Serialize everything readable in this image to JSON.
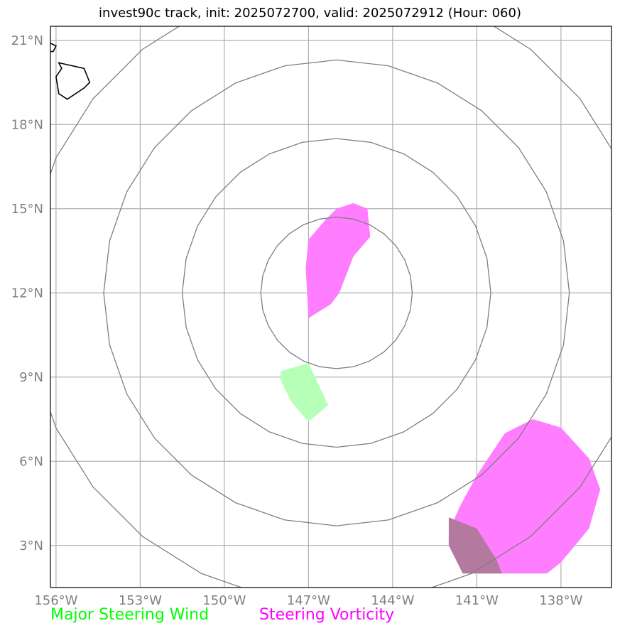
{
  "title": "invest90c track, init: 2025072700, valid: 2025072912 (Hour: 060)",
  "map": {
    "lon_range": [
      -156.2,
      -136.2
    ],
    "lat_range": [
      1.5,
      21.5
    ],
    "lon_ticks": [
      -156,
      -153,
      -150,
      -147,
      -144,
      -141,
      -138
    ],
    "lat_ticks": [
      3,
      6,
      9,
      12,
      15,
      18,
      21
    ],
    "lon_labels": [
      "156°W",
      "153°W",
      "150°W",
      "147°W",
      "144°W",
      "141°W",
      "138°W"
    ],
    "lat_labels": [
      "3°N",
      "6°N",
      "9°N",
      "12°N",
      "15°N",
      "18°N",
      "21°N"
    ],
    "grid": true,
    "rings": {
      "center": [
        -146.0,
        12.0
      ],
      "radii_lat_deg": [
        2.7,
        5.5,
        8.3,
        11.1
      ]
    },
    "steering_wind_areas": [
      [
        [
          -148.0,
          9.2
        ],
        [
          -147.0,
          9.5
        ],
        [
          -146.3,
          8.0
        ],
        [
          -147.0,
          7.4
        ],
        [
          -147.6,
          8.1
        ],
        [
          -148.0,
          8.9
        ]
      ]
    ],
    "vorticity_areas": [
      [
        [
          -147.0,
          13.9
        ],
        [
          -146.4,
          14.6
        ],
        [
          -146.0,
          15.0
        ],
        [
          -145.4,
          15.2
        ],
        [
          -144.9,
          15.0
        ],
        [
          -144.8,
          14.0
        ],
        [
          -145.4,
          13.3
        ],
        [
          -145.9,
          12.0
        ],
        [
          -146.2,
          11.6
        ],
        [
          -147.0,
          11.1
        ],
        [
          -147.1,
          12.9
        ]
      ],
      [
        [
          -142.0,
          3.5
        ],
        [
          -141.6,
          4.4
        ],
        [
          -141.0,
          5.5
        ],
        [
          -140.0,
          7.0
        ],
        [
          -139.0,
          7.5
        ],
        [
          -138.0,
          7.2
        ],
        [
          -137.0,
          6.1
        ],
        [
          -136.6,
          5.0
        ],
        [
          -137.0,
          3.6
        ],
        [
          -138.0,
          2.4
        ],
        [
          -138.5,
          2.0
        ],
        [
          -141.0,
          2.0
        ],
        [
          -142.0,
          3.0
        ]
      ]
    ],
    "overlap_areas": [
      [
        [
          -142.0,
          4.0
        ],
        [
          -141.0,
          3.6
        ],
        [
          -140.3,
          2.5
        ],
        [
          -140.1,
          2.0
        ],
        [
          -141.5,
          2.0
        ],
        [
          -142.0,
          3.0
        ]
      ]
    ],
    "coastline_main": [
      [
        -155.9,
        20.2
      ],
      [
        -155.0,
        20.0
      ],
      [
        -154.8,
        19.5
      ],
      [
        -155.0,
        19.3
      ],
      [
        -155.6,
        18.9
      ],
      [
        -155.9,
        19.1
      ],
      [
        -156.0,
        19.7
      ],
      [
        -155.8,
        20.0
      ]
    ],
    "coastline_stub": [
      [
        -156.2,
        20.9
      ],
      [
        -156.0,
        20.8
      ],
      [
        -156.1,
        20.6
      ],
      [
        -156.2,
        20.6
      ]
    ],
    "colors": {
      "grid": "#b0b0b0",
      "rings": "#7f7f7f",
      "steering_wind": "#b6ffb6",
      "vorticity": "#ff7dff",
      "overlap": "#b3799f",
      "coastline": "#000000",
      "tick_labels": "#808080"
    }
  },
  "legend": {
    "wind_label": "Major Steering Wind",
    "wind_color": "#00ff00",
    "vort_label": "Steering Vorticity",
    "vort_color": "#ff00ff"
  }
}
